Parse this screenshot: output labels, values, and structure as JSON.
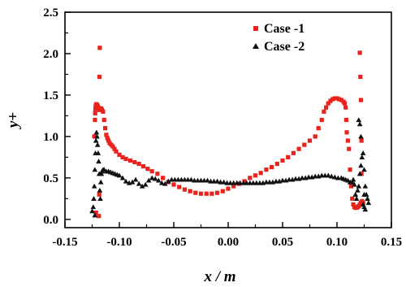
{
  "chart_data": {
    "type": "scatter",
    "xlabel": "x / m",
    "ylabel": "y+",
    "xlim": [
      -0.15,
      0.15
    ],
    "ylim": [
      -0.1,
      2.5
    ],
    "x_ticks": [
      "-0.15",
      "-0.10",
      "-0.05",
      "0.00",
      "0.05",
      "0.10",
      "0.15"
    ],
    "x_tick_values": [
      -0.15,
      -0.1,
      -0.05,
      0.0,
      0.05,
      0.1,
      0.15
    ],
    "y_ticks": [
      "0.0",
      "0.5",
      "1.0",
      "1.5",
      "2.0",
      "2.5"
    ],
    "y_tick_values": [
      0.0,
      0.5,
      1.0,
      1.5,
      2.0,
      2.5
    ],
    "legend_position": "top-right",
    "series": [
      {
        "name": "Case -1",
        "color": "#e8231d",
        "marker": "square",
        "x": [
          -0.123,
          -0.1224,
          -0.1222,
          -0.122,
          -0.1218,
          -0.1215,
          -0.121,
          -0.1205,
          -0.12,
          -0.1195,
          -0.119,
          -0.118,
          -0.1175,
          -0.117,
          -0.1165,
          -0.116,
          -0.115,
          -0.114,
          -0.113,
          -0.112,
          -0.111,
          -0.11,
          -0.109,
          -0.1075,
          -0.106,
          -0.1045,
          -0.103,
          -0.1,
          -0.097,
          -0.094,
          -0.09,
          -0.086,
          -0.082,
          -0.078,
          -0.074,
          -0.07,
          -0.065,
          -0.06,
          -0.055,
          -0.05,
          -0.045,
          -0.04,
          -0.035,
          -0.03,
          -0.025,
          -0.02,
          -0.015,
          -0.01,
          -0.005,
          0.0,
          0.005,
          0.01,
          0.015,
          0.02,
          0.025,
          0.03,
          0.035,
          0.04,
          0.045,
          0.05,
          0.055,
          0.06,
          0.065,
          0.07,
          0.075,
          0.08,
          0.083,
          0.086,
          0.088,
          0.09,
          0.092,
          0.094,
          0.096,
          0.098,
          0.1,
          0.102,
          0.104,
          0.106,
          0.107,
          0.108,
          0.1085,
          0.109,
          0.11,
          0.111,
          0.112,
          0.113,
          0.114,
          0.115,
          0.116,
          0.117,
          0.118,
          0.119,
          0.12,
          0.121,
          0.122,
          0.123,
          0.124,
          -0.118,
          -0.1183,
          -0.1185,
          -0.1188,
          0.121,
          0.1215,
          0.122,
          0.1225
        ],
        "y": [
          1.0,
          1.2,
          1.28,
          1.33,
          1.36,
          1.38,
          1.39,
          1.38,
          1.37,
          1.35,
          1.33,
          1.32,
          1.33,
          1.34,
          1.33,
          1.32,
          1.3,
          1.2,
          1.1,
          1.02,
          0.98,
          0.95,
          0.92,
          0.9,
          0.88,
          0.85,
          0.82,
          0.78,
          0.75,
          0.73,
          0.71,
          0.69,
          0.67,
          0.64,
          0.61,
          0.58,
          0.55,
          0.5,
          0.45,
          0.42,
          0.39,
          0.36,
          0.34,
          0.32,
          0.31,
          0.31,
          0.31,
          0.32,
          0.34,
          0.37,
          0.4,
          0.43,
          0.46,
          0.5,
          0.53,
          0.56,
          0.6,
          0.63,
          0.67,
          0.71,
          0.75,
          0.8,
          0.85,
          0.9,
          0.95,
          1.0,
          1.1,
          1.2,
          1.3,
          1.35,
          1.4,
          1.43,
          1.45,
          1.46,
          1.46,
          1.45,
          1.44,
          1.42,
          1.4,
          1.35,
          1.2,
          1.05,
          0.95,
          0.85,
          0.6,
          0.4,
          0.25,
          0.18,
          0.15,
          0.14,
          0.14,
          0.15,
          0.16,
          0.18,
          0.2,
          0.22,
          0.2,
          2.07,
          1.72,
          0.3,
          0.04,
          2.01,
          1.72,
          1.44,
          0.55
        ],
        "tail_x": [
          -0.1215,
          0.1225
        ],
        "tail_y": [
          0.08,
          0.95
        ]
      },
      {
        "name": "Case -2",
        "color": "#111111",
        "marker": "triangle",
        "x": [
          -0.125,
          -0.124,
          -0.1235,
          -0.123,
          -0.1225,
          -0.122,
          -0.1215,
          -0.121,
          -0.1205,
          -0.12,
          -0.1195,
          -0.119,
          -0.1185,
          -0.118,
          -0.1175,
          -0.117,
          -0.1165,
          -0.116,
          -0.115,
          -0.114,
          -0.112,
          -0.11,
          -0.108,
          -0.106,
          -0.104,
          -0.102,
          -0.1,
          -0.097,
          -0.094,
          -0.091,
          -0.088,
          -0.085,
          -0.082,
          -0.079,
          -0.076,
          -0.073,
          -0.07,
          -0.067,
          -0.064,
          -0.061,
          -0.058,
          -0.055,
          -0.052,
          -0.049,
          -0.046,
          -0.043,
          -0.04,
          -0.037,
          -0.034,
          -0.031,
          -0.028,
          -0.025,
          -0.022,
          -0.019,
          -0.016,
          -0.013,
          -0.01,
          -0.007,
          -0.004,
          -0.001,
          0.002,
          0.005,
          0.008,
          0.011,
          0.014,
          0.017,
          0.02,
          0.023,
          0.026,
          0.029,
          0.032,
          0.035,
          0.038,
          0.041,
          0.044,
          0.047,
          0.05,
          0.053,
          0.056,
          0.059,
          0.062,
          0.065,
          0.068,
          0.071,
          0.074,
          0.077,
          0.08,
          0.083,
          0.086,
          0.089,
          0.092,
          0.095,
          0.098,
          0.101,
          0.104,
          0.106,
          0.108,
          0.11,
          0.112,
          0.114,
          0.115,
          0.116,
          0.117,
          0.118,
          0.119,
          0.12,
          0.121,
          0.122,
          0.123,
          0.124,
          0.125,
          0.126,
          0.127,
          0.128,
          0.129,
          0.124,
          0.125,
          0.126,
          0.12,
          0.121,
          0.122
        ],
        "y": [
          0.1,
          0.15,
          0.25,
          0.4,
          0.6,
          0.8,
          0.95,
          1.05,
          1.0,
          0.9,
          0.8,
          0.7,
          0.55,
          0.35,
          0.25,
          0.45,
          0.55,
          0.58,
          0.6,
          0.6,
          0.58,
          0.58,
          0.57,
          0.56,
          0.55,
          0.54,
          0.53,
          0.5,
          0.46,
          0.44,
          0.45,
          0.48,
          0.43,
          0.4,
          0.42,
          0.47,
          0.5,
          0.49,
          0.47,
          0.44,
          0.43,
          0.46,
          0.48,
          0.48,
          0.48,
          0.48,
          0.48,
          0.48,
          0.48,
          0.47,
          0.47,
          0.47,
          0.47,
          0.47,
          0.46,
          0.46,
          0.46,
          0.45,
          0.45,
          0.44,
          0.44,
          0.44,
          0.44,
          0.44,
          0.44,
          0.44,
          0.44,
          0.44,
          0.44,
          0.44,
          0.44,
          0.45,
          0.45,
          0.45,
          0.46,
          0.46,
          0.47,
          0.47,
          0.48,
          0.48,
          0.49,
          0.49,
          0.5,
          0.5,
          0.51,
          0.51,
          0.52,
          0.52,
          0.53,
          0.53,
          0.53,
          0.52,
          0.51,
          0.5,
          0.5,
          0.49,
          0.48,
          0.47,
          0.45,
          0.45,
          0.48,
          0.42,
          0.3,
          0.25,
          0.35,
          0.4,
          0.55,
          0.65,
          0.75,
          0.8,
          0.6,
          0.4,
          0.3,
          0.25,
          0.2,
          0.18,
          0.15,
          0.12,
          1.2,
          1.15,
          1.0
        ],
        "extra_x": [
          -0.1225,
          0.125
        ],
        "extra_y": [
          0.05,
          0.3
        ]
      }
    ]
  }
}
